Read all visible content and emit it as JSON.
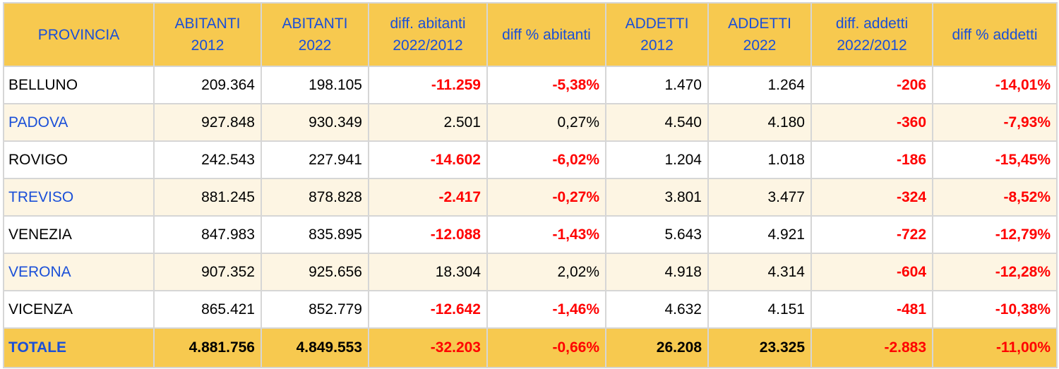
{
  "chart_data": {
    "type": "table",
    "columns": [
      "PROVINCIA",
      "ABITANTI 2012",
      "ABITANTI 2022",
      "diff. abitanti 2022/2012",
      "diff % abitanti",
      "ADDETTI 2012",
      "ADDETTI 2022",
      "diff. addetti 2022/2012",
      "diff % addetti"
    ],
    "rows": [
      [
        "BELLUNO",
        "209.364",
        "198.105",
        "-11.259",
        "-5,38%",
        "1.470",
        "1.264",
        "-206",
        "-14,01%"
      ],
      [
        "PADOVA",
        "927.848",
        "930.349",
        "2.501",
        "0,27%",
        "4.540",
        "4.180",
        "-360",
        "-7,93%"
      ],
      [
        "ROVIGO",
        "242.543",
        "227.941",
        "-14.602",
        "-6,02%",
        "1.204",
        "1.018",
        "-186",
        "-15,45%"
      ],
      [
        "TREVISO",
        "881.245",
        "878.828",
        "-2.417",
        "-0,27%",
        "3.801",
        "3.477",
        "-324",
        "-8,52%"
      ],
      [
        "VENEZIA",
        "847.983",
        "835.895",
        "-12.088",
        "-1,43%",
        "5.643",
        "4.921",
        "-722",
        "-12,79%"
      ],
      [
        "VERONA",
        "907.352",
        "925.656",
        "18.304",
        "2,02%",
        "4.918",
        "4.314",
        "-604",
        "-12,28%"
      ],
      [
        "VICENZA",
        "865.421",
        "852.779",
        "-12.642",
        "-1,46%",
        "4.632",
        "4.151",
        "-481",
        "-10,38%"
      ]
    ],
    "total": [
      "TOTALE",
      "4.881.756",
      "4.849.553",
      "-32.203",
      "-0,66%",
      "26.208",
      "23.325",
      "-2.883",
      "-11,00%"
    ]
  },
  "colors": {
    "header_bg": "#f7c94f",
    "header_text": "#1a4fd8",
    "alt_row_bg": "#fdf5e3",
    "negative": "#ff0000",
    "grid": "#d6d6d6"
  }
}
